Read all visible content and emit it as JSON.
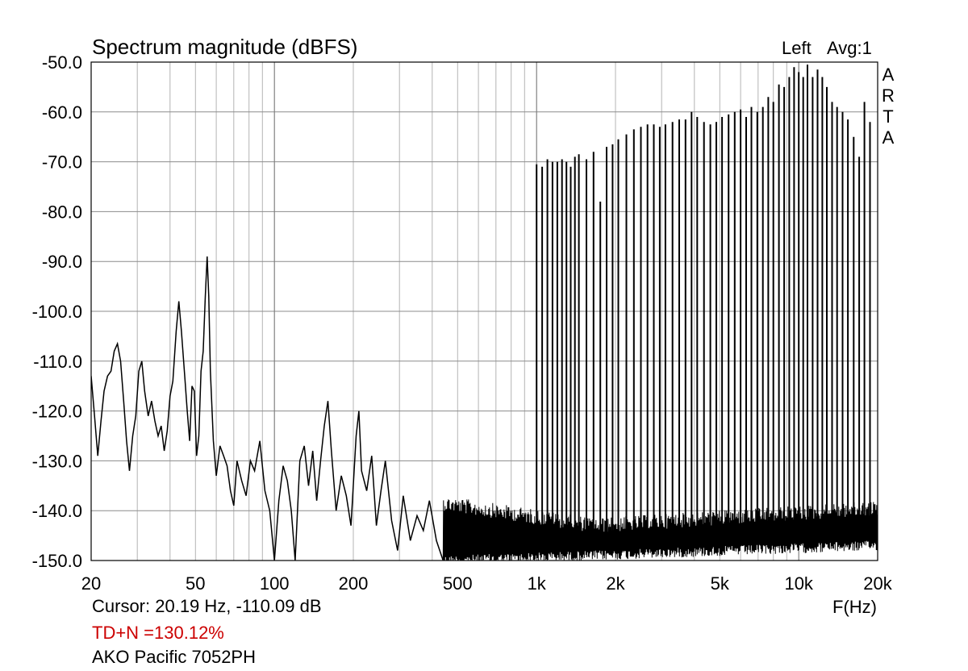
{
  "header": {
    "title": "Spectrum magnitude (dBFS)",
    "channel": "Left",
    "avg": "Avg:1",
    "brand_letters": [
      "A",
      "R",
      "T",
      "A"
    ]
  },
  "footer": {
    "cursor": "Cursor: 20.19 Hz, -110.09 dB",
    "tdn": "TD+N =130.12%",
    "tdn_color": "#cc0000",
    "device": "AKO Pacific 7052PH"
  },
  "chart_data": {
    "type": "line",
    "title": "Spectrum magnitude (dBFS)",
    "xlabel": "F(Hz)",
    "ylabel": "",
    "x_scale": "log",
    "xlim": [
      20,
      20000
    ],
    "ylim": [
      -150,
      -50
    ],
    "grid": true,
    "line_color": "#000000",
    "x_ticks": [
      {
        "value": 20,
        "label": "20"
      },
      {
        "value": 50,
        "label": "50"
      },
      {
        "value": 100,
        "label": "100"
      },
      {
        "value": 200,
        "label": "200"
      },
      {
        "value": 500,
        "label": "500"
      },
      {
        "value": 1000,
        "label": "1k"
      },
      {
        "value": 2000,
        "label": "2k"
      },
      {
        "value": 5000,
        "label": "5k"
      },
      {
        "value": 10000,
        "label": "10k"
      },
      {
        "value": 20000,
        "label": "20k"
      }
    ],
    "y_ticks": [
      {
        "value": -50,
        "label": "-50.0"
      },
      {
        "value": -60,
        "label": "-60.0"
      },
      {
        "value": -70,
        "label": "-70.0"
      },
      {
        "value": -80,
        "label": "-80.0"
      },
      {
        "value": -90,
        "label": "-90.0"
      },
      {
        "value": -100,
        "label": "-100.0"
      },
      {
        "value": -110,
        "label": "-110.0"
      },
      {
        "value": -120,
        "label": "-120.0"
      },
      {
        "value": -130,
        "label": "-130.0"
      },
      {
        "value": -140,
        "label": "-140.0"
      },
      {
        "value": -150,
        "label": "-150.0"
      }
    ],
    "low_band": [
      [
        20,
        -113
      ],
      [
        20.6,
        -121
      ],
      [
        21.2,
        -129
      ],
      [
        21.8,
        -122
      ],
      [
        22.4,
        -116
      ],
      [
        23.1,
        -113
      ],
      [
        23.8,
        -112
      ],
      [
        24.5,
        -108
      ],
      [
        25.2,
        -106.5
      ],
      [
        25.9,
        -110
      ],
      [
        26.6,
        -118
      ],
      [
        27.3,
        -126
      ],
      [
        28,
        -132
      ],
      [
        28.8,
        -125
      ],
      [
        29.6,
        -121
      ],
      [
        30.4,
        -112
      ],
      [
        31.2,
        -110
      ],
      [
        32,
        -116
      ],
      [
        33,
        -121
      ],
      [
        34,
        -118
      ],
      [
        35,
        -122
      ],
      [
        36,
        -125
      ],
      [
        37,
        -123
      ],
      [
        38,
        -128
      ],
      [
        39,
        -124
      ],
      [
        40,
        -117
      ],
      [
        41,
        -114
      ],
      [
        42.2,
        -104
      ],
      [
        43.2,
        -98
      ],
      [
        44.2,
        -104
      ],
      [
        45.5,
        -113
      ],
      [
        46.5,
        -120
      ],
      [
        47.5,
        -126
      ],
      [
        48.5,
        -115
      ],
      [
        49.5,
        -116
      ],
      [
        50.5,
        -129
      ],
      [
        51.5,
        -125
      ],
      [
        52.5,
        -112
      ],
      [
        53.5,
        -108
      ],
      [
        54.5,
        -97
      ],
      [
        55.4,
        -89
      ],
      [
        56.2,
        -97
      ],
      [
        57,
        -112
      ],
      [
        58.5,
        -126
      ],
      [
        60,
        -133
      ],
      [
        62,
        -127
      ],
      [
        64,
        -129
      ],
      [
        66,
        -131
      ],
      [
        68,
        -136
      ],
      [
        70,
        -139
      ],
      [
        72,
        -130
      ],
      [
        75,
        -134
      ],
      [
        78,
        -137
      ],
      [
        81,
        -130
      ],
      [
        84,
        -132
      ],
      [
        88,
        -126
      ],
      [
        92,
        -136
      ],
      [
        96,
        -140
      ],
      [
        100,
        -150
      ],
      [
        104,
        -138
      ],
      [
        108,
        -131
      ],
      [
        112,
        -134
      ],
      [
        116,
        -140
      ],
      [
        120,
        -150
      ],
      [
        125,
        -130
      ],
      [
        130,
        -127
      ],
      [
        135,
        -135
      ],
      [
        140,
        -128
      ],
      [
        145,
        -138
      ],
      [
        150,
        -130
      ],
      [
        155,
        -123
      ],
      [
        160,
        -118
      ],
      [
        165,
        -128
      ],
      [
        172,
        -140
      ],
      [
        180,
        -133
      ],
      [
        188,
        -137
      ],
      [
        196,
        -143
      ],
      [
        205,
        -125
      ],
      [
        210,
        -120
      ],
      [
        215,
        -132
      ],
      [
        225,
        -136
      ],
      [
        235,
        -129
      ],
      [
        245,
        -143
      ],
      [
        255,
        -136
      ],
      [
        265,
        -130
      ],
      [
        280,
        -142
      ],
      [
        295,
        -148
      ],
      [
        310,
        -137
      ],
      [
        330,
        -146
      ],
      [
        350,
        -141
      ],
      [
        370,
        -144
      ],
      [
        390,
        -138
      ],
      [
        415,
        -146
      ],
      [
        440,
        -150
      ]
    ],
    "noise_floor": {
      "fmin": 440,
      "fmax": 20000,
      "start_low": -149,
      "start_high": -137,
      "end_low": -146,
      "end_high": -138,
      "mid_low": -148,
      "mid_high": -141.5
    },
    "tones": [
      {
        "f": 1000,
        "db": -70.5
      },
      {
        "f": 1050,
        "db": -71
      },
      {
        "f": 1100,
        "db": -69.5
      },
      {
        "f": 1150,
        "db": -70
      },
      {
        "f": 1200,
        "db": -70
      },
      {
        "f": 1250,
        "db": -69.5
      },
      {
        "f": 1300,
        "db": -70
      },
      {
        "f": 1350,
        "db": -71
      },
      {
        "f": 1400,
        "db": -69
      },
      {
        "f": 1450,
        "db": -68.5
      },
      {
        "f": 1550,
        "db": -69.5
      },
      {
        "f": 1650,
        "db": -68
      },
      {
        "f": 1750,
        "db": -78
      },
      {
        "f": 1850,
        "db": -67
      },
      {
        "f": 1950,
        "db": -66.5
      },
      {
        "f": 2050,
        "db": -65.5
      },
      {
        "f": 2200,
        "db": -64.5
      },
      {
        "f": 2350,
        "db": -63.5
      },
      {
        "f": 2500,
        "db": -63
      },
      {
        "f": 2650,
        "db": -62.5
      },
      {
        "f": 2800,
        "db": -62.5
      },
      {
        "f": 2950,
        "db": -63
      },
      {
        "f": 3100,
        "db": -62.5
      },
      {
        "f": 3300,
        "db": -62
      },
      {
        "f": 3500,
        "db": -61.5
      },
      {
        "f": 3700,
        "db": -61.5
      },
      {
        "f": 3900,
        "db": -60
      },
      {
        "f": 4100,
        "db": -61
      },
      {
        "f": 4350,
        "db": -62
      },
      {
        "f": 4600,
        "db": -62.5
      },
      {
        "f": 4850,
        "db": -62
      },
      {
        "f": 5100,
        "db": -61
      },
      {
        "f": 5400,
        "db": -60.5
      },
      {
        "f": 5700,
        "db": -60
      },
      {
        "f": 6000,
        "db": -59.5
      },
      {
        "f": 6300,
        "db": -61
      },
      {
        "f": 6600,
        "db": -59
      },
      {
        "f": 6950,
        "db": -60
      },
      {
        "f": 7300,
        "db": -59
      },
      {
        "f": 7650,
        "db": -57
      },
      {
        "f": 8000,
        "db": -58
      },
      {
        "f": 8400,
        "db": -54.5
      },
      {
        "f": 8800,
        "db": -55
      },
      {
        "f": 9200,
        "db": -53
      },
      {
        "f": 9600,
        "db": -51
      },
      {
        "f": 10000,
        "db": -52
      },
      {
        "f": 10400,
        "db": -53
      },
      {
        "f": 10800,
        "db": -50.5
      },
      {
        "f": 11300,
        "db": -53
      },
      {
        "f": 11800,
        "db": -51.5
      },
      {
        "f": 12300,
        "db": -53
      },
      {
        "f": 12800,
        "db": -55
      },
      {
        "f": 13400,
        "db": -58
      },
      {
        "f": 14000,
        "db": -59
      },
      {
        "f": 14700,
        "db": -60
      },
      {
        "f": 15400,
        "db": -61.5
      },
      {
        "f": 16200,
        "db": -65
      },
      {
        "f": 17000,
        "db": -69
      },
      {
        "f": 17800,
        "db": -58
      },
      {
        "f": 18700,
        "db": -62
      }
    ]
  }
}
